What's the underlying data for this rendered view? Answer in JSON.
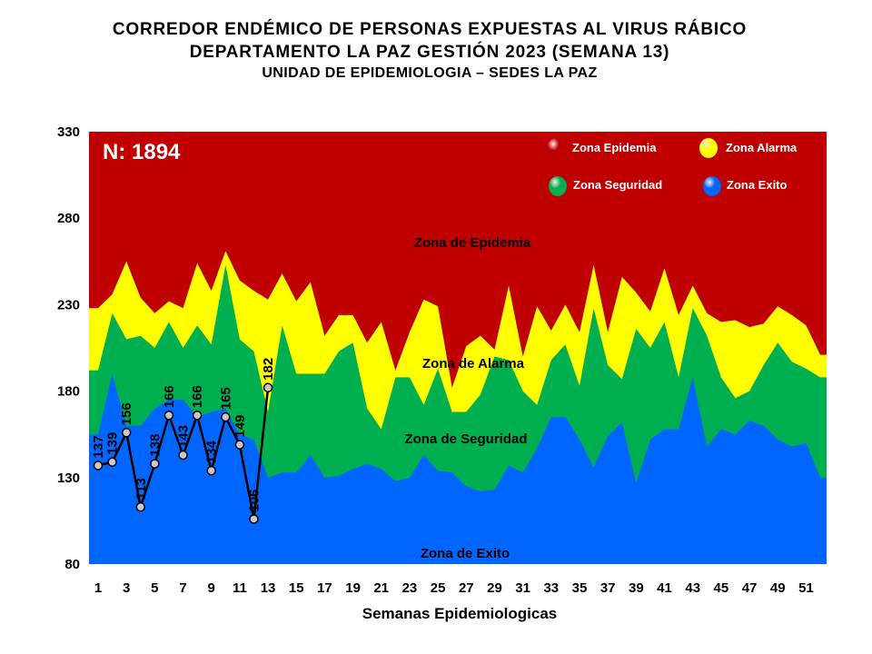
{
  "title": {
    "line1": "CORREDOR ENDÉMICO DE PERSONAS EXPUESTAS AL VIRUS RÁBICO",
    "line2": "DEPARTAMENTO  LA PAZ GESTIÓN 2023 (SEMANA 13)",
    "line3": "UNIDAD DE EPIDEMIOLOGIA – SEDES LA PAZ"
  },
  "chart_data": {
    "type": "area",
    "title": "CORREDOR ENDÉMICO DE PERSONAS EXPUESTAS AL VIRUS RÁBICO",
    "xlabel": "Semanas Epidemiologicas",
    "ylabel": "",
    "ylim": [
      80,
      330
    ],
    "yticks": [
      80,
      130,
      180,
      230,
      280,
      330
    ],
    "xlim": [
      1,
      52
    ],
    "xticks": [
      1,
      3,
      5,
      7,
      9,
      11,
      13,
      15,
      17,
      19,
      21,
      23,
      25,
      27,
      29,
      31,
      33,
      35,
      37,
      39,
      41,
      43,
      45,
      47,
      49,
      51
    ],
    "n_annotation": "N: 1894",
    "legend_placement": "top-right",
    "grid": false,
    "legend": [
      {
        "name": "Zona Epidemia",
        "color": "#c00000"
      },
      {
        "name": "Zona Alarma",
        "color": "#ffff00"
      },
      {
        "name": "Zona Seguridad",
        "color": "#00b050"
      },
      {
        "name": "Zona Exito",
        "color": "#0066ff"
      }
    ],
    "zone_labels": [
      "Zona de Epidemia",
      "Zona de Alarma",
      "Zona de Seguridad",
      "Zona de Exito"
    ],
    "weeks": [
      1,
      2,
      3,
      4,
      5,
      6,
      7,
      8,
      9,
      10,
      11,
      12,
      13,
      14,
      15,
      16,
      17,
      18,
      19,
      20,
      21,
      22,
      23,
      24,
      25,
      26,
      27,
      28,
      29,
      30,
      31,
      32,
      33,
      34,
      35,
      36,
      37,
      38,
      39,
      40,
      41,
      42,
      43,
      44,
      45,
      46,
      47,
      48,
      49,
      50,
      51,
      52
    ],
    "series": [
      {
        "name": "Zona Exito",
        "color": "#0066ff",
        "values": [
          155,
          190,
          160,
          160,
          170,
          175,
          175,
          165,
          168,
          170,
          155,
          152,
          130,
          133,
          133,
          143,
          130,
          131,
          135,
          138,
          135,
          128,
          130,
          143,
          134,
          133,
          125,
          122,
          123,
          137,
          133,
          147,
          165,
          165,
          152,
          136,
          154,
          162,
          127,
          152,
          158,
          158,
          188,
          148,
          158,
          155,
          163,
          160,
          152,
          148,
          150,
          130
        ]
      },
      {
        "name": "Zona Seguridad",
        "color": "#00b050",
        "values": [
          192,
          225,
          210,
          212,
          205,
          220,
          205,
          218,
          207,
          253,
          210,
          203,
          168,
          218,
          190,
          190,
          190,
          203,
          208,
          170,
          158,
          188,
          188,
          172,
          193,
          168,
          168,
          178,
          200,
          198,
          180,
          172,
          198,
          207,
          183,
          228,
          195,
          187,
          216,
          205,
          220,
          188,
          228,
          212,
          188,
          176,
          180,
          195,
          208,
          197,
          193,
          188
        ]
      },
      {
        "name": "Zona Alarma",
        "color": "#ffff00",
        "values": [
          228,
          236,
          255,
          234,
          225,
          232,
          228,
          254,
          238,
          261,
          244,
          238,
          233,
          248,
          232,
          243,
          212,
          224,
          224,
          208,
          220,
          192,
          214,
          233,
          229,
          182,
          206,
          212,
          204,
          241,
          200,
          229,
          215,
          230,
          214,
          253,
          214,
          246,
          237,
          226,
          251,
          224,
          241,
          225,
          220,
          221,
          217,
          219,
          229,
          224,
          218,
          201
        ]
      }
    ],
    "observed": {
      "name": "2023",
      "weeks": [
        1,
        2,
        3,
        4,
        5,
        6,
        7,
        8,
        9,
        10,
        11,
        12,
        13
      ],
      "values": [
        137,
        139,
        156,
        113,
        138,
        166,
        143,
        166,
        134,
        165,
        149,
        106,
        182
      ]
    }
  }
}
